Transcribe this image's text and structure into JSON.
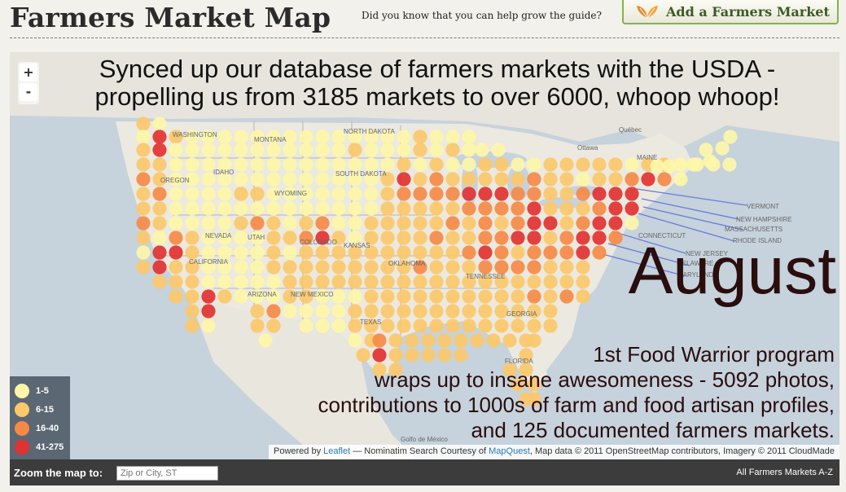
{
  "header": {
    "title": "Farmers Market Map",
    "tagline": "Did you know that you can help grow the guide?",
    "add_button": "Add a Farmers Market",
    "leaf_icon": "leaf-icon"
  },
  "map": {
    "zoom_in": "+",
    "zoom_out": "-",
    "announcement_top": "Synced up our database of farmers markets with the USDA - propelling us from 3185 markets to over 6000, whoop whoop!",
    "month": "August",
    "announcement_bottom": [
      "1st Food Warrior program",
      "wraps up to insane awesomeness - 5092 photos,",
      "contributions to 1000s of farm and food artisan profiles,",
      "and 125 documented farmers markets."
    ],
    "place_labels": [
      "Québec",
      "Ottawa",
      "MAINE",
      "VERMONT",
      "NEW HAMPSHIRE",
      "MASSACHUSETTS",
      "RHODE ISLAND",
      "CONNECTICUT",
      "NEW JERSEY",
      "DELAWARE",
      "MARYLAND",
      "MONTANA",
      "NORTH DAKOTA",
      "SOUTH DAKOTA",
      "WYOMING",
      "IDAHO",
      "NEVADA",
      "UTAH",
      "COLORADO",
      "KANSAS",
      "OKLAHOMA",
      "ARIZONA",
      "NEW MEXICO",
      "TEXAS",
      "CALIFORNIA",
      "TENNESSEE",
      "GEORGIA",
      "FLORIDA",
      "WASHINGTON",
      "OREGON",
      "Golfo de México"
    ],
    "legend": [
      {
        "label": "1-5",
        "color": "#fdf6a8"
      },
      {
        "label": "6-15",
        "color": "#fbc86a"
      },
      {
        "label": "16-40",
        "color": "#f58a47"
      },
      {
        "label": "41-275",
        "color": "#e13232"
      }
    ],
    "attribution": {
      "prefix": "Powered by ",
      "leaflet": "Leaflet",
      "mid": " — Nominatim Search Courtesy of ",
      "mapquest": "MapQuest",
      "suffix": ", Map data © 2011 OpenStreetMap contributors, Imagery © 2011 CloudMade"
    }
  },
  "footer": {
    "zoom_label": "Zoom the map to:",
    "zoom_placeholder": "Zip or City, ST",
    "all_markets": "All Farmers Markets A-Z"
  }
}
